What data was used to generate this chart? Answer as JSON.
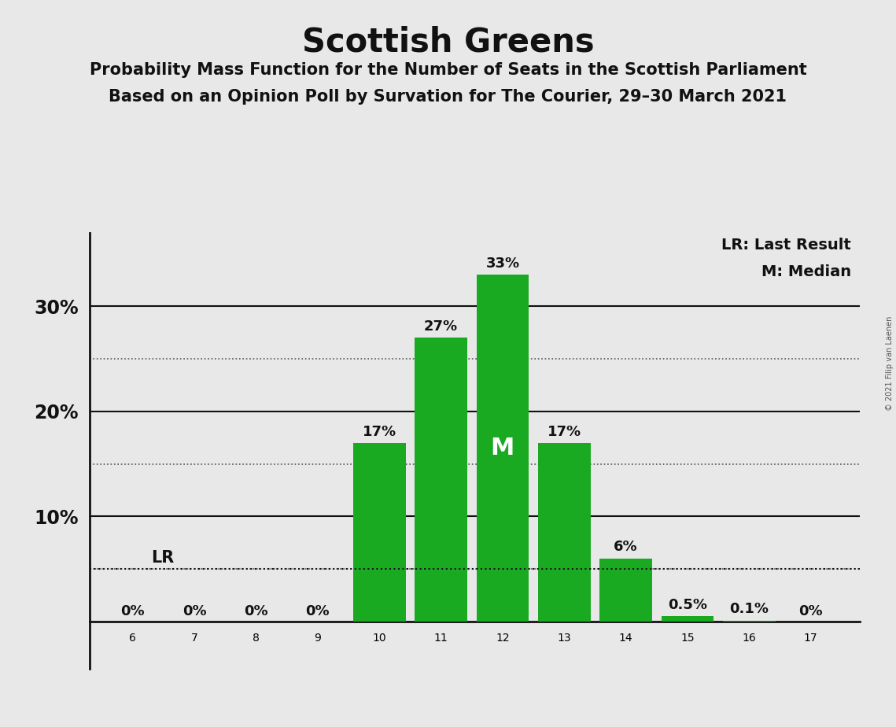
{
  "title": "Scottish Greens",
  "subtitle1": "Probability Mass Function for the Number of Seats in the Scottish Parliament",
  "subtitle2": "Based on an Opinion Poll by Survation for The Courier, 29–30 March 2021",
  "copyright": "© 2021 Filip van Laenen",
  "categories": [
    6,
    7,
    8,
    9,
    10,
    11,
    12,
    13,
    14,
    15,
    16,
    17
  ],
  "values": [
    0,
    0,
    0,
    0,
    17,
    27,
    33,
    17,
    6,
    0.5,
    0.1,
    0
  ],
  "bar_color": "#1aaa22",
  "background_color": "#e8e8e8",
  "label_texts": [
    "0%",
    "0%",
    "0%",
    "0%",
    "17%",
    "27%",
    "33%",
    "17%",
    "6%",
    "0.5%",
    "0.1%",
    "0%"
  ],
  "median_seat": 12,
  "lr_value": 5,
  "solid_yticks": [
    10,
    20,
    30
  ],
  "dotted_yticks": [
    5,
    15,
    25
  ],
  "ylim_top": 37,
  "ymin": -4.5,
  "legend_lr": "LR: Last Result",
  "legend_m": "M: Median",
  "xlim_left": 5.3,
  "xlim_right": 17.8
}
